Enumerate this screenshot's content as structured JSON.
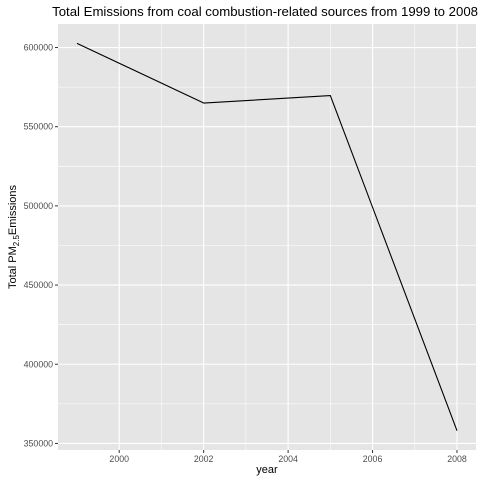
{
  "chart_data": {
    "type": "line",
    "title": "Total Emissions from coal combustion-related sources from 1999 to 2008",
    "xlabel": "year",
    "ylabel": {
      "prefix": "Total PM",
      "subscript": "2.5",
      "suffix": "Emissions"
    },
    "x": [
      1999,
      2002,
      2005,
      2008
    ],
    "series": [
      {
        "values": [
          602624,
          564940,
          569655,
          358084
        ]
      }
    ],
    "xlim": [
      1998.55,
      2008.45
    ],
    "ylim": [
      345860,
      614850
    ],
    "x_ticks": [
      2000,
      2002,
      2004,
      2006,
      2008
    ],
    "x_tick_labels": [
      "2000",
      "2002",
      "2004",
      "2006",
      "2008"
    ],
    "y_ticks": [
      350000,
      400000,
      450000,
      500000,
      550000,
      600000
    ],
    "y_tick_labels": [
      "350000",
      "400000",
      "450000",
      "500000",
      "550000",
      "600000"
    ],
    "grid": true,
    "colors": {
      "panel_background": "#e5e5e5",
      "grid_major": "#ffffff",
      "line": "#000000"
    }
  }
}
